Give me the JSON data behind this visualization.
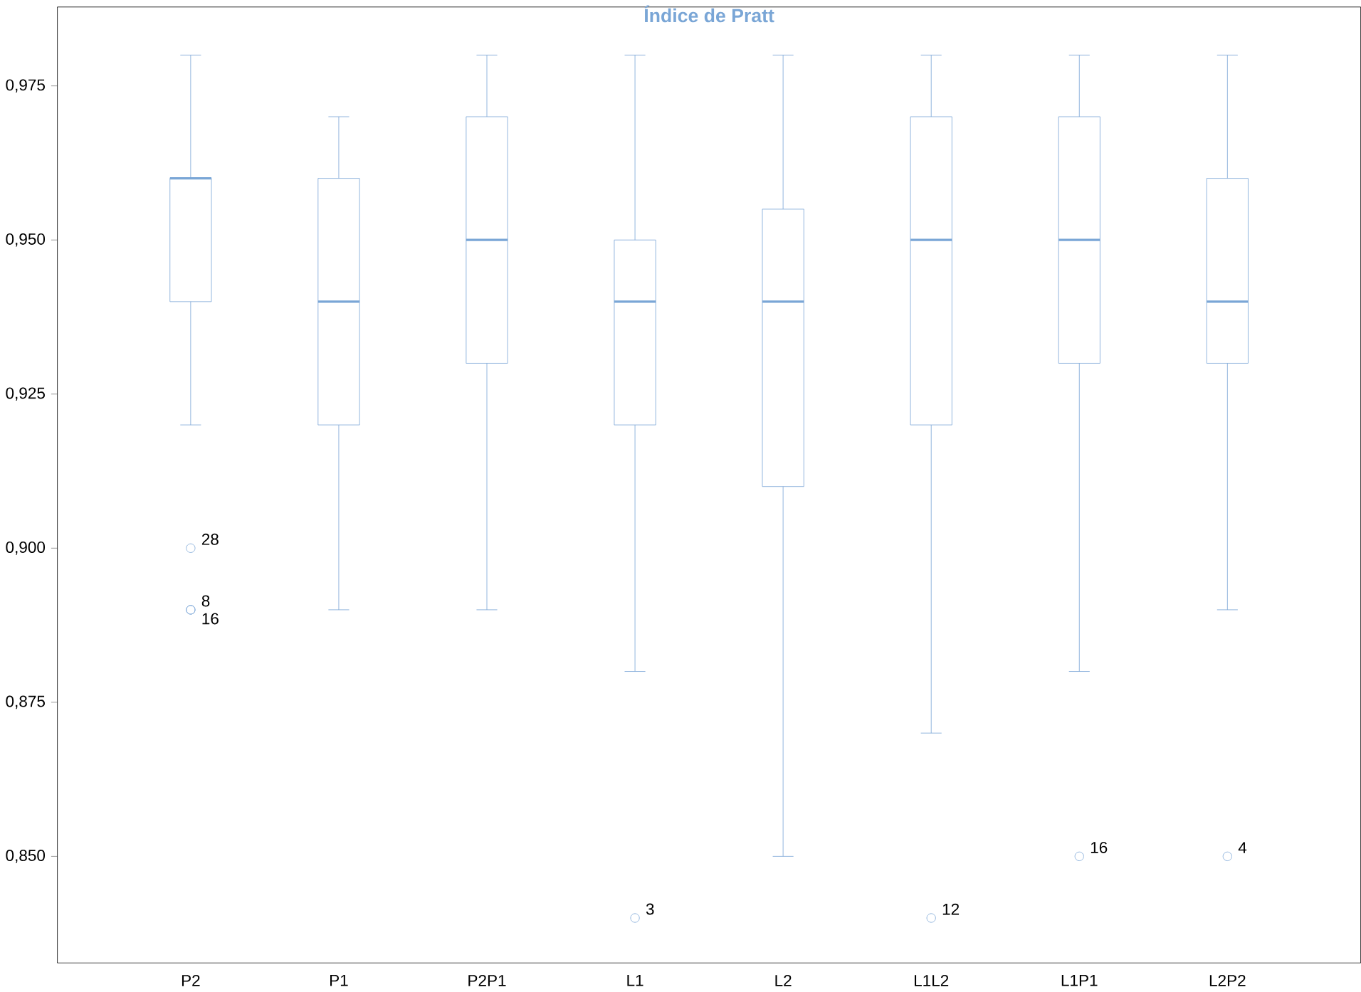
{
  "chart_data": {
    "type": "box",
    "title": "Índice de Pratt",
    "color": "#7aa6d6",
    "categories": [
      "P2",
      "P1",
      "P2P1",
      "L1",
      "L2",
      "L1L2",
      "L1P1",
      "L2P2"
    ],
    "boxes": [
      {
        "low": 0.92,
        "q1": 0.94,
        "median": 0.96,
        "q3": 0.96,
        "high": 0.98,
        "outliers": [
          0.9,
          0.89,
          0.89
        ]
      },
      {
        "low": 0.89,
        "q1": 0.92,
        "median": 0.94,
        "q3": 0.96,
        "high": 0.97
      },
      {
        "low": 0.89,
        "q1": 0.93,
        "median": 0.95,
        "q3": 0.97,
        "high": 0.98
      },
      {
        "low": 0.88,
        "q1": 0.92,
        "median": 0.94,
        "q3": 0.95,
        "high": 0.98,
        "outliers": [
          0.84
        ]
      },
      {
        "low": 0.85,
        "q1": 0.91,
        "median": 0.94,
        "q3": 0.955,
        "high": 0.98
      },
      {
        "low": 0.87,
        "q1": 0.92,
        "median": 0.95,
        "q3": 0.97,
        "high": 0.98,
        "outliers": [
          0.84
        ]
      },
      {
        "low": 0.88,
        "q1": 0.93,
        "median": 0.95,
        "q3": 0.97,
        "high": 0.98,
        "outliers": [
          0.85
        ]
      },
      {
        "low": 0.89,
        "q1": 0.93,
        "median": 0.94,
        "q3": 0.96,
        "high": 0.98,
        "outliers": [
          0.85
        ]
      }
    ],
    "ylim": [
      0.8327,
      0.9878
    ],
    "yticks": [
      {
        "value": 0.85,
        "label": "0,850"
      },
      {
        "value": 0.875,
        "label": "0,875"
      },
      {
        "value": 0.9,
        "label": "0,900"
      },
      {
        "value": 0.925,
        "label": "0,925"
      },
      {
        "value": 0.95,
        "label": "0,950"
      },
      {
        "value": 0.975,
        "label": "0,975"
      }
    ],
    "annotations": [
      "28",
      "8",
      "16",
      "3",
      "12",
      "16",
      "4"
    ],
    "grid": false,
    "marker": "circle"
  }
}
